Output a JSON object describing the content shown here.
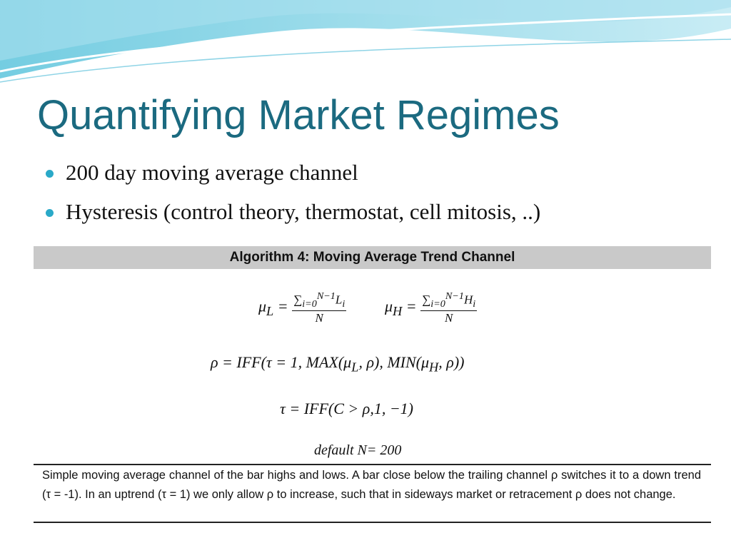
{
  "title": "Quantifying Market Regimes",
  "bullets": [
    "200 day moving average channel",
    "Hysteresis (control theory, thermostat, cell mitosis, ..)"
  ],
  "algorithm": {
    "heading": "Algorithm 4: Moving Average Trend Channel",
    "mu_low": {
      "symbol": "μ",
      "sub": "L",
      "eq": "=",
      "sum": "∑",
      "sum_sub": "i=0",
      "sum_sup": "N−1",
      "term": "L",
      "term_sub": "i",
      "denominator": "N"
    },
    "mu_high": {
      "symbol": "μ",
      "sub": "H",
      "eq": "=",
      "sum": "∑",
      "sum_sub": "i=0",
      "sum_sup": "N−1",
      "term": "H",
      "term_sub": "i",
      "denominator": "N"
    },
    "rho": [
      "ρ = IFF(τ = 1, MAX(μ",
      "L",
      ", ρ), MIN(μ",
      "H",
      ", ρ))"
    ],
    "tau": "τ = IFF(C >  ρ,1, −1)",
    "default": [
      "default N",
      "= 200"
    ],
    "caption": "Simple moving average channel of the bar highs and lows.  A bar close below the trailing channel ρ switches it to a down trend (τ = -1).  In an uptrend (τ = 1) we only allow ρ to increase, such that in sideways market or retracement ρ does not change."
  }
}
